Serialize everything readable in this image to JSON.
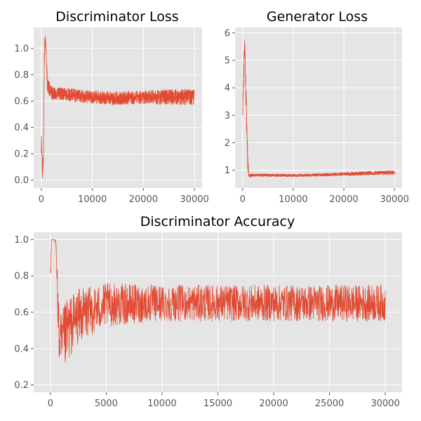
{
  "figure": {
    "background": "#ffffff",
    "panel_color": "#e5e5e5",
    "series_color": "#e24a33"
  },
  "chart_data": [
    {
      "id": "disc_loss",
      "type": "line",
      "title": "Discriminator Loss",
      "xlabel": "",
      "ylabel": "",
      "xlim": [
        -1500,
        31500
      ],
      "ylim": [
        -0.06,
        1.16
      ],
      "xticks": [
        0,
        10000,
        20000,
        30000
      ],
      "yticks": [
        0.0,
        0.2,
        0.4,
        0.6,
        0.8,
        1.0
      ],
      "ytick_labels": [
        "0.0",
        "0.2",
        "0.4",
        "0.6",
        "0.8",
        "1.0"
      ],
      "grid": true,
      "series": [
        {
          "name": "loss",
          "x": [
            0,
            200,
            400,
            600,
            800,
            1200,
            2000,
            5000,
            10000,
            15000,
            20000,
            25000,
            30000
          ],
          "y": [
            0.3,
            0.05,
            0.2,
            0.95,
            1.1,
            0.72,
            0.66,
            0.65,
            0.63,
            0.62,
            0.63,
            0.63,
            0.63
          ],
          "noise": [
            0.1,
            0.05,
            0.1,
            0.1,
            0.05,
            0.06,
            0.05,
            0.05,
            0.05,
            0.05,
            0.05,
            0.06,
            0.06
          ]
        }
      ]
    },
    {
      "id": "gen_loss",
      "type": "line",
      "title": "Generator Loss",
      "xlabel": "",
      "ylabel": "",
      "xlim": [
        -1500,
        31500
      ],
      "ylim": [
        0.35,
        6.2
      ],
      "xticks": [
        0,
        10000,
        20000,
        30000
      ],
      "yticks": [
        1,
        2,
        3,
        4,
        5,
        6
      ],
      "ytick_labels": [
        "1",
        "2",
        "3",
        "4",
        "5",
        "6"
      ],
      "grid": true,
      "series": [
        {
          "name": "loss",
          "x": [
            0,
            200,
            400,
            600,
            800,
            1000,
            1200,
            2000,
            5000,
            10000,
            15000,
            20000,
            25000,
            30000
          ],
          "y": [
            3.3,
            4.5,
            5.5,
            4.0,
            2.8,
            1.4,
            0.8,
            0.82,
            0.82,
            0.81,
            0.83,
            0.86,
            0.89,
            0.92
          ],
          "noise": [
            0.4,
            0.5,
            0.4,
            0.5,
            0.6,
            0.4,
            0.06,
            0.05,
            0.05,
            0.05,
            0.05,
            0.06,
            0.07,
            0.08
          ]
        }
      ]
    },
    {
      "id": "disc_acc",
      "type": "line",
      "title": "Discriminator Accuracy",
      "xlabel": "",
      "ylabel": "",
      "xlim": [
        -1500,
        31500
      ],
      "ylim": [
        0.16,
        1.04
      ],
      "xticks": [
        0,
        5000,
        10000,
        15000,
        20000,
        25000,
        30000
      ],
      "yticks": [
        0.2,
        0.4,
        0.6,
        0.8,
        1.0
      ],
      "ytick_labels": [
        "0.2",
        "0.4",
        "0.6",
        "0.8",
        "1.0"
      ],
      "grid": true,
      "series": [
        {
          "name": "accuracy",
          "x": [
            0,
            100,
            300,
            500,
            600,
            700,
            800,
            1000,
            1500,
            2500,
            5000,
            10000,
            15000,
            20000,
            25000,
            30000
          ],
          "y": [
            0.8,
            1.0,
            1.0,
            0.98,
            0.8,
            0.55,
            0.45,
            0.4,
            0.5,
            0.58,
            0.64,
            0.65,
            0.65,
            0.65,
            0.65,
            0.65
          ],
          "noise": [
            0.05,
            0.0,
            0.0,
            0.02,
            0.1,
            0.15,
            0.15,
            0.2,
            0.18,
            0.15,
            0.12,
            0.1,
            0.1,
            0.1,
            0.1,
            0.1
          ]
        }
      ]
    }
  ]
}
